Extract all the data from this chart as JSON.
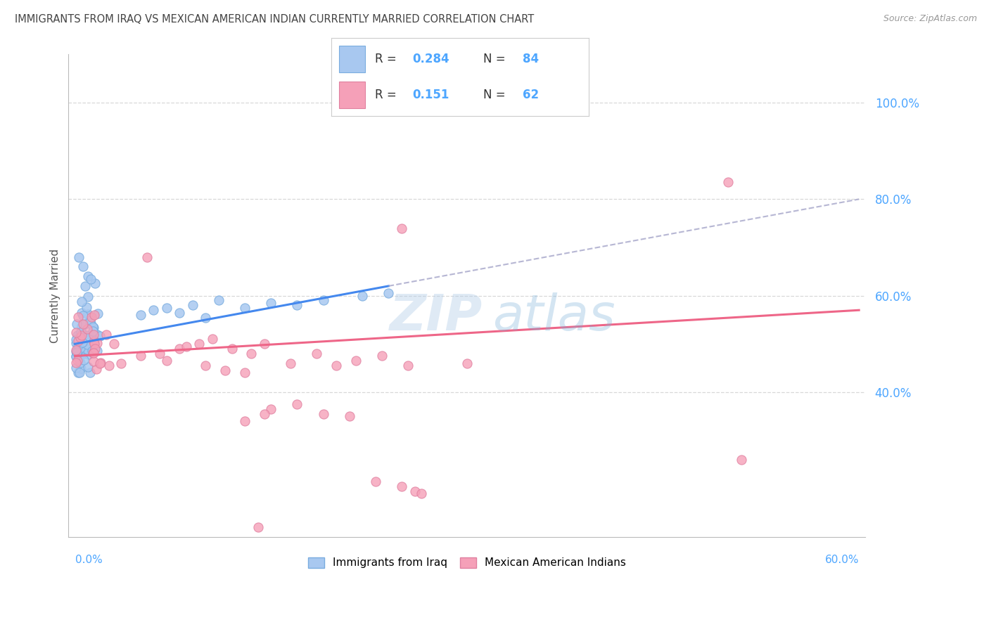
{
  "title": "IMMIGRANTS FROM IRAQ VS MEXICAN AMERICAN INDIAN CURRENTLY MARRIED CORRELATION CHART",
  "source": "Source: ZipAtlas.com",
  "ylabel": "Currently Married",
  "xlim": [
    -0.005,
    0.605
  ],
  "ylim": [
    0.1,
    1.1
  ],
  "ytick_vals": [
    0.4,
    0.6,
    0.8,
    1.0
  ],
  "ytick_labels": [
    "40.0%",
    "60.0%",
    "80.0%",
    "100.0%"
  ],
  "xtick_left": "0.0%",
  "xtick_right": "60.0%",
  "background_color": "#ffffff",
  "grid_color": "#d8d8d8",
  "title_color": "#444444",
  "axis_label_color": "#4da6ff",
  "series1_color": "#a8c8f0",
  "series2_color": "#f5a0b8",
  "series1_edge": "#7aaddf",
  "series2_edge": "#e080a0",
  "trend1_color": "#4488ee",
  "trend2_color": "#ee6688",
  "trend_ext_color": "#aaaacc",
  "R1": 0.284,
  "N1": 84,
  "R2": 0.151,
  "N2": 62,
  "legend_label1": "Immigrants from Iraq",
  "legend_label2": "Mexican American Indians",
  "watermark_zip": "ZIP",
  "watermark_atlas": "atlas",
  "trend1_x_end": 0.24,
  "trend1_x_ext_end": 0.6,
  "trend2_x_end": 0.6
}
